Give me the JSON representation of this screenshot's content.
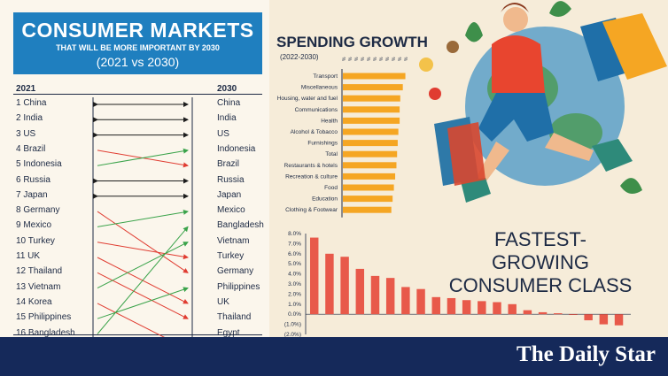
{
  "header": {
    "title": "CONSUMER MARKETS",
    "subtitle": "THAT WILL BE MORE IMPORTANT BY 2030",
    "years": "(2021 vs 2030)",
    "col_left": "2021",
    "col_right": "2030"
  },
  "ranking": {
    "left": [
      "1 China",
      "2 India",
      "3 US",
      "4 Brazil",
      "5 Indonesia",
      "6 Russia",
      "7 Japan",
      "8 Germany",
      "9 Mexico",
      "10 Turkey",
      "11 UK",
      "12 Thailand",
      "13 Vietnam",
      "14 Korea",
      "15 Philippines",
      "16 Bangladesh"
    ],
    "right": [
      "China",
      "India",
      "US",
      "Indonesia",
      "Brazil",
      "Russia",
      "Japan",
      "Mexico",
      "Bangladesh",
      "Vietnam",
      "Turkey",
      "Germany",
      "Philippines",
      "UK",
      "Thailand",
      "Egypt"
    ],
    "links": [
      {
        "from": 1,
        "to": 1,
        "dir": "same"
      },
      {
        "from": 2,
        "to": 2,
        "dir": "same"
      },
      {
        "from": 3,
        "to": 3,
        "dir": "same"
      },
      {
        "from": 4,
        "to": 5,
        "dir": "down"
      },
      {
        "from": 5,
        "to": 4,
        "dir": "up"
      },
      {
        "from": 6,
        "to": 6,
        "dir": "same"
      },
      {
        "from": 7,
        "to": 7,
        "dir": "same"
      },
      {
        "from": 8,
        "to": 12,
        "dir": "down"
      },
      {
        "from": 9,
        "to": 8,
        "dir": "up"
      },
      {
        "from": 10,
        "to": 11,
        "dir": "down"
      },
      {
        "from": 11,
        "to": 14,
        "dir": "down"
      },
      {
        "from": 12,
        "to": 15,
        "dir": "down"
      },
      {
        "from": 13,
        "to": 10,
        "dir": "up"
      },
      {
        "from": 14,
        "to": 17,
        "dir": "down"
      },
      {
        "from": 15,
        "to": 13,
        "dir": "up"
      },
      {
        "from": 16,
        "to": 9,
        "dir": "up"
      }
    ],
    "colors": {
      "same": "#1d1d1d",
      "up": "#3aa34a",
      "down": "#e03c31"
    }
  },
  "chart_data": [
    {
      "type": "bar",
      "title": "SPENDING GROWTH",
      "subtitle": "(2022-2030)",
      "orientation": "horizontal",
      "categories": [
        "Transport",
        "Miscellaneous",
        "Housing, water and fuel",
        "Communications",
        "Health",
        "Alcohol & Tobacco",
        "Furnishings",
        "Total",
        "Restaurants & hotels",
        "Recreation & culture",
        "Food",
        "Education",
        "Clothing & Footwear"
      ],
      "values": [
        9.8,
        9.4,
        9.0,
        8.9,
        8.9,
        8.7,
        8.6,
        8.5,
        8.4,
        8.2,
        8.0,
        7.8,
        7.6
      ],
      "color": "#f5a623"
    },
    {
      "type": "bar",
      "title": "FASTEST-GROWING CONSUMER CLASS",
      "values": [
        7.6,
        6.0,
        5.7,
        4.5,
        3.8,
        3.6,
        2.7,
        2.5,
        1.7,
        1.6,
        1.4,
        1.3,
        1.2,
        1.0,
        0.4,
        0.2,
        0.1,
        0.0,
        -0.6,
        -1.0,
        -1.1
      ],
      "ylim": [
        -2.0,
        8.0
      ],
      "yticks": [
        "8.0%",
        "7.0%",
        "6.0%",
        "5.0%",
        "4.0%",
        "3.0%",
        "2.0%",
        "1.0%",
        "0.0%",
        "(1.0%)",
        "(2.0%)"
      ],
      "color": "#e8594a"
    }
  ],
  "footer": {
    "brand": "The Daily Star"
  }
}
